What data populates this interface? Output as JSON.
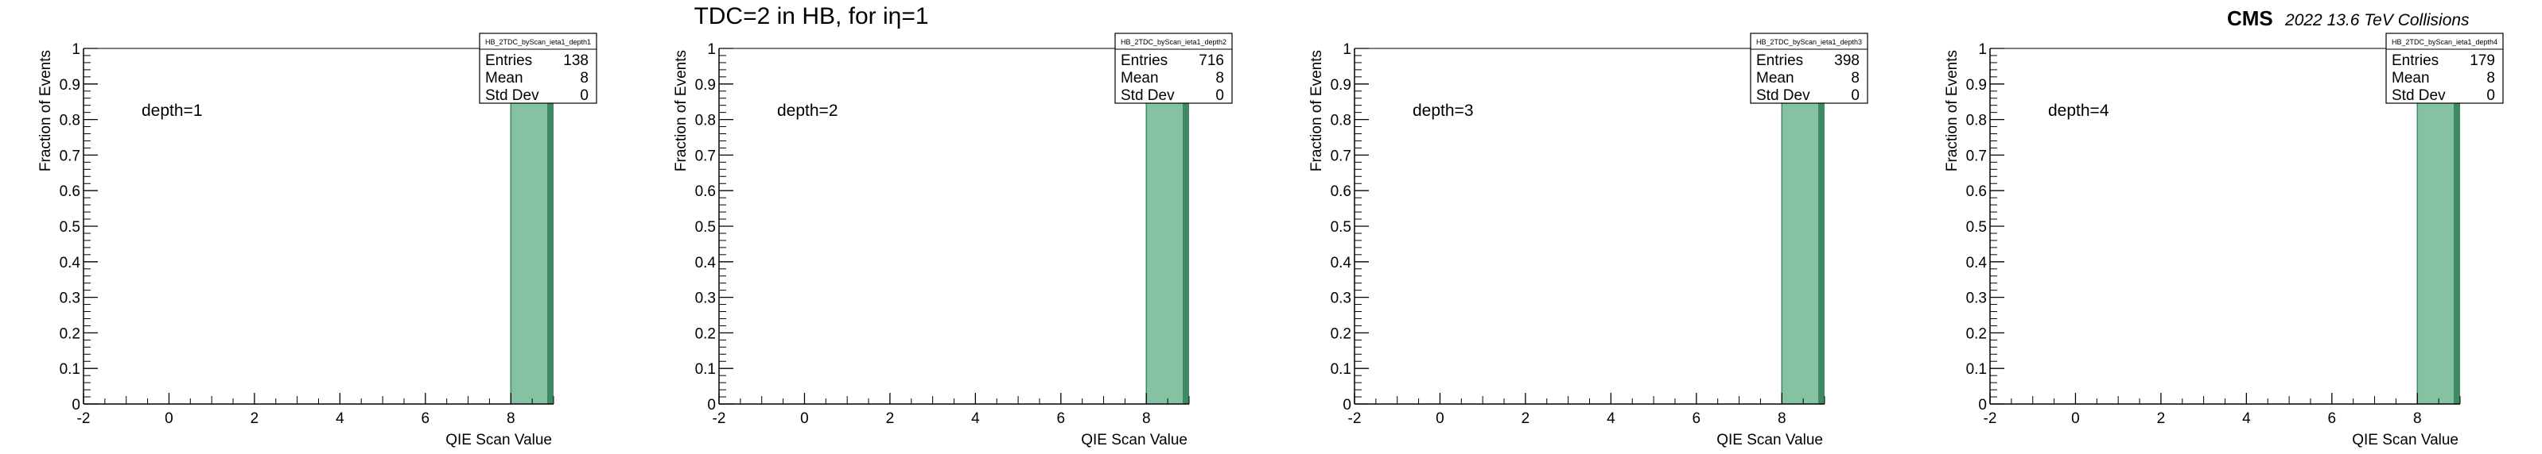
{
  "figure": {
    "title": "TDC=2 in HB, for iη=1",
    "cms_label": "CMS",
    "cms_sublabel": "2022 13.6 TeV Collisions"
  },
  "colors": {
    "bar_fill": "#84c2a3",
    "bar_edge": "#3d8a63",
    "frame": "#000000"
  },
  "chart_data": [
    {
      "type": "bar",
      "annotation": "depth=1",
      "stats": {
        "name": "HB_2TDC_byScan_ieta1_depth1",
        "entries": "138",
        "mean": "8",
        "std_dev": "0"
      },
      "xlabel": "QIE Scan Value",
      "ylabel": "Fraction of Events",
      "xlim": [
        -2,
        9
      ],
      "ylim": [
        0,
        1
      ],
      "xticks": [
        "-2",
        "0",
        "2",
        "4",
        "6",
        "8"
      ],
      "yticks": [
        "0",
        "0.1",
        "0.2",
        "0.3",
        "0.4",
        "0.5",
        "0.6",
        "0.7",
        "0.8",
        "0.9",
        "1"
      ],
      "bins": [
        {
          "x_low": 8,
          "x_high": 9,
          "value": 1.0
        }
      ],
      "grid": false
    },
    {
      "type": "bar",
      "annotation": "depth=2",
      "stats": {
        "name": "HB_2TDC_byScan_ieta1_depth2",
        "entries": "716",
        "mean": "8",
        "std_dev": "0"
      },
      "xlabel": "QIE Scan Value",
      "ylabel": "Fraction of Events",
      "xlim": [
        -2,
        9
      ],
      "ylim": [
        0,
        1
      ],
      "xticks": [
        "-2",
        "0",
        "2",
        "4",
        "6",
        "8"
      ],
      "yticks": [
        "0",
        "0.1",
        "0.2",
        "0.3",
        "0.4",
        "0.5",
        "0.6",
        "0.7",
        "0.8",
        "0.9",
        "1"
      ],
      "bins": [
        {
          "x_low": 8,
          "x_high": 9,
          "value": 1.0
        }
      ],
      "grid": false
    },
    {
      "type": "bar",
      "annotation": "depth=3",
      "stats": {
        "name": "HB_2TDC_byScan_ieta1_depth3",
        "entries": "398",
        "mean": "8",
        "std_dev": "0"
      },
      "xlabel": "QIE Scan Value",
      "ylabel": "Fraction of Events",
      "xlim": [
        -2,
        9
      ],
      "ylim": [
        0,
        1
      ],
      "xticks": [
        "-2",
        "0",
        "2",
        "4",
        "6",
        "8"
      ],
      "yticks": [
        "0",
        "0.1",
        "0.2",
        "0.3",
        "0.4",
        "0.5",
        "0.6",
        "0.7",
        "0.8",
        "0.9",
        "1"
      ],
      "bins": [
        {
          "x_low": 8,
          "x_high": 9,
          "value": 1.0
        }
      ],
      "grid": false
    },
    {
      "type": "bar",
      "annotation": "depth=4",
      "stats": {
        "name": "HB_2TDC_byScan_ieta1_depth4",
        "entries": "179",
        "mean": "8",
        "std_dev": "0"
      },
      "xlabel": "QIE Scan Value",
      "ylabel": "Fraction of Events",
      "xlim": [
        -2,
        9
      ],
      "ylim": [
        0,
        1
      ],
      "xticks": [
        "-2",
        "0",
        "2",
        "4",
        "6",
        "8"
      ],
      "yticks": [
        "0",
        "0.1",
        "0.2",
        "0.3",
        "0.4",
        "0.5",
        "0.6",
        "0.7",
        "0.8",
        "0.9",
        "1"
      ],
      "bins": [
        {
          "x_low": 8,
          "x_high": 9,
          "value": 1.0
        }
      ],
      "grid": false
    }
  ]
}
